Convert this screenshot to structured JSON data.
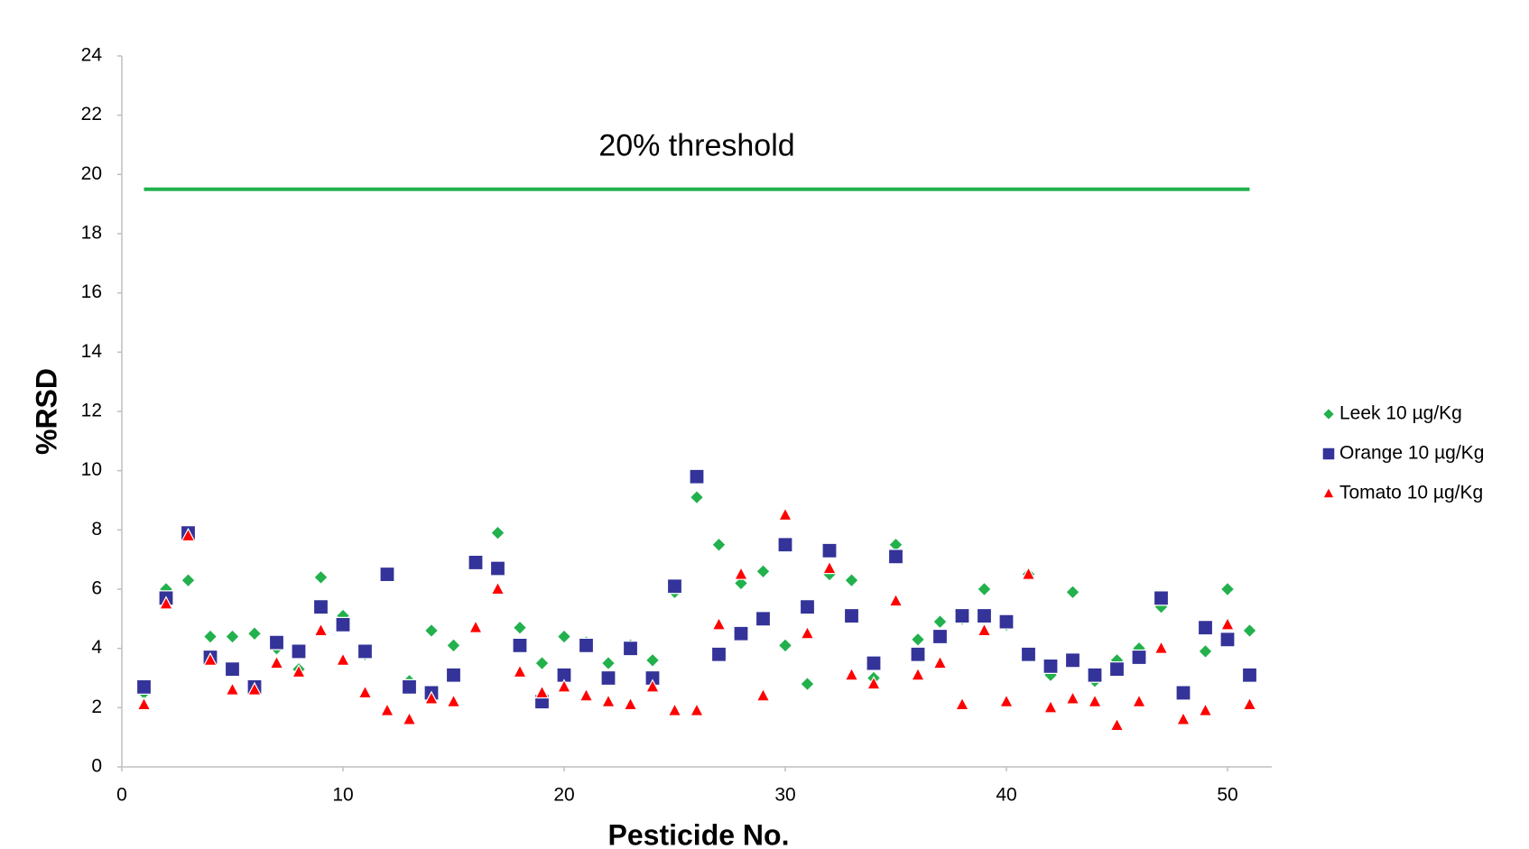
{
  "chart_data": {
    "type": "scatter",
    "x_label": "Pesticide No.",
    "y_label": "%RSD",
    "xlim": [
      0,
      52
    ],
    "xticks": [
      0,
      10,
      20,
      30,
      40,
      50
    ],
    "ylim": [
      0,
      24
    ],
    "yticks": [
      0,
      2,
      4,
      6,
      8,
      10,
      12,
      14,
      16,
      18,
      20,
      22,
      24
    ],
    "grid": false,
    "legend": "right",
    "threshold": {
      "label": "20% threshold",
      "y": 19.5,
      "x": [
        1,
        51
      ],
      "color": "#22b14c"
    },
    "x": [
      1,
      2,
      3,
      4,
      5,
      6,
      7,
      8,
      9,
      10,
      11,
      12,
      13,
      14,
      15,
      16,
      17,
      18,
      19,
      20,
      21,
      22,
      23,
      24,
      25,
      26,
      27,
      28,
      29,
      30,
      31,
      32,
      33,
      34,
      35,
      36,
      37,
      38,
      39,
      40,
      41,
      42,
      43,
      44,
      45,
      46,
      47,
      48,
      49,
      50,
      51
    ],
    "series": [
      {
        "name": "Leek  10 µg/Kg",
        "color": "#22b14c",
        "marker": "diamond",
        "values": [
          2.5,
          6.0,
          6.3,
          4.4,
          4.4,
          4.5,
          4.0,
          3.3,
          6.4,
          5.1,
          3.8,
          6.5,
          2.9,
          4.6,
          4.1,
          6.9,
          7.9,
          4.7,
          3.5,
          4.4,
          4.2,
          3.5,
          4.1,
          3.6,
          5.9,
          9.1,
          7.5,
          6.2,
          6.6,
          4.1,
          2.8,
          6.5,
          6.3,
          3.0,
          7.5,
          4.3,
          4.9,
          5.0,
          6.0,
          4.8,
          6.5,
          3.1,
          5.9,
          2.9,
          3.6,
          4.0,
          5.4,
          2.5,
          3.9,
          6.0,
          4.6
        ]
      },
      {
        "name": "Orange  10 µg/Kg",
        "color": "#333399",
        "marker": "square",
        "values": [
          2.7,
          5.7,
          7.9,
          3.7,
          3.3,
          2.7,
          4.2,
          3.9,
          5.4,
          4.8,
          3.9,
          6.5,
          2.7,
          2.5,
          3.1,
          6.9,
          6.7,
          4.1,
          2.2,
          3.1,
          4.1,
          3.0,
          4.0,
          3.0,
          6.1,
          9.8,
          3.8,
          4.5,
          5.0,
          7.5,
          5.4,
          7.3,
          5.1,
          3.5,
          7.1,
          3.8,
          4.4,
          5.1,
          5.1,
          4.9,
          3.8,
          3.4,
          3.6,
          3.1,
          3.3,
          3.7,
          5.7,
          2.5,
          4.7,
          4.3,
          3.1
        ]
      },
      {
        "name": "Tomato  10 µg/Kg",
        "color": "#ff0000",
        "marker": "triangle",
        "values": [
          2.1,
          5.5,
          7.8,
          3.6,
          2.6,
          2.6,
          3.5,
          3.2,
          4.6,
          3.6,
          2.5,
          1.9,
          1.6,
          2.3,
          2.2,
          4.7,
          6.0,
          3.2,
          2.5,
          2.7,
          2.4,
          2.2,
          2.1,
          2.7,
          1.9,
          1.9,
          4.8,
          6.5,
          2.4,
          8.5,
          4.5,
          6.7,
          3.1,
          2.8,
          5.6,
          3.1,
          3.5,
          2.1,
          4.6,
          2.2,
          6.5,
          2.0,
          2.3,
          2.2,
          1.4,
          2.2,
          4.0,
          1.6,
          1.9,
          4.8,
          2.1
        ]
      }
    ]
  }
}
